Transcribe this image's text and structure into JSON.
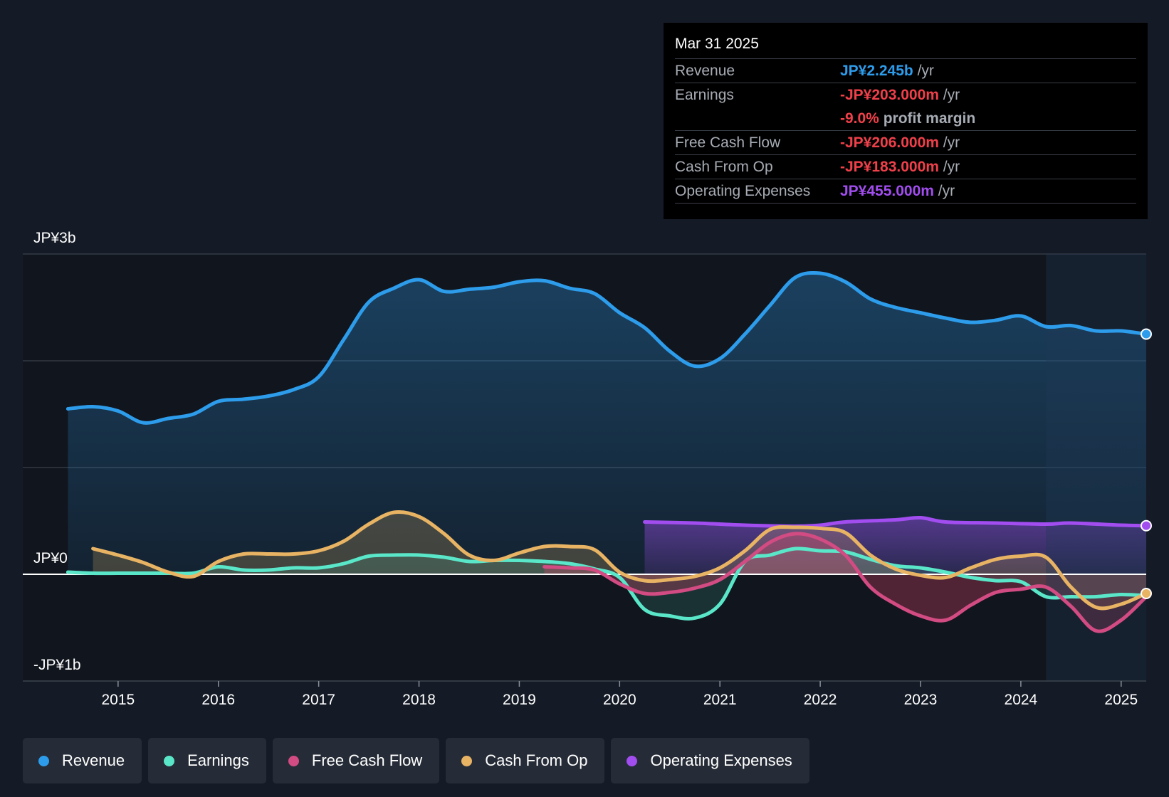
{
  "colors": {
    "revenue": "#2d9ceb",
    "earnings": "#5ae6c8",
    "fcf": "#d24b82",
    "cfo": "#e8b464",
    "opex": "#a24df0",
    "negative": "#f0404a",
    "background": "#151b26"
  },
  "tooltip": {
    "date": "Mar 31 2025",
    "rows": [
      {
        "label": "Revenue",
        "value": "JP¥2.245b",
        "unit": "/yr"
      },
      {
        "label": "Earnings",
        "value": "-JP¥203.000m",
        "unit": "/yr"
      },
      {
        "label": "",
        "value": "-9.0%",
        "unit": "profit margin"
      },
      {
        "label": "Free Cash Flow",
        "value": "-JP¥206.000m",
        "unit": "/yr"
      },
      {
        "label": "Cash From Op",
        "value": "-JP¥183.000m",
        "unit": "/yr"
      },
      {
        "label": "Operating Expenses",
        "value": "JP¥455.000m",
        "unit": "/yr"
      }
    ]
  },
  "chart_data": {
    "type": "area",
    "y_unit": "JP¥ billions",
    "ylim": [
      -1.0,
      3.0
    ],
    "y_tick_labels": [
      {
        "value": 3,
        "label": "JP¥3b"
      },
      {
        "value": 0,
        "label": "JP¥0"
      },
      {
        "value": -1,
        "label": "-JP¥1b"
      }
    ],
    "xlim": [
      2014.05,
      2025.25
    ],
    "x_ticks": [
      {
        "value": 2015,
        "label": "2015"
      },
      {
        "value": 2016,
        "label": "2016"
      },
      {
        "value": 2017,
        "label": "2017"
      },
      {
        "value": 2018,
        "label": "2018"
      },
      {
        "value": 2019,
        "label": "2019"
      },
      {
        "value": 2020,
        "label": "2020"
      },
      {
        "value": 2021,
        "label": "2021"
      },
      {
        "value": 2022,
        "label": "2022"
      },
      {
        "value": 2023,
        "label": "2023"
      },
      {
        "value": 2024,
        "label": "2024"
      },
      {
        "value": 2025,
        "label": "2025"
      }
    ],
    "forecast_start": 2024.25,
    "series": [
      {
        "name": "Revenue",
        "key": "revenue",
        "marker": true,
        "points": [
          [
            2014.5,
            1.55
          ],
          [
            2014.75,
            1.57
          ],
          [
            2015.0,
            1.53
          ],
          [
            2015.25,
            1.42
          ],
          [
            2015.5,
            1.46
          ],
          [
            2015.75,
            1.5
          ],
          [
            2016.0,
            1.62
          ],
          [
            2016.25,
            1.64
          ],
          [
            2016.5,
            1.67
          ],
          [
            2016.75,
            1.73
          ],
          [
            2017.0,
            1.85
          ],
          [
            2017.25,
            2.2
          ],
          [
            2017.5,
            2.55
          ],
          [
            2017.75,
            2.68
          ],
          [
            2018.0,
            2.76
          ],
          [
            2018.25,
            2.65
          ],
          [
            2018.5,
            2.67
          ],
          [
            2018.75,
            2.69
          ],
          [
            2019.0,
            2.74
          ],
          [
            2019.25,
            2.75
          ],
          [
            2019.5,
            2.68
          ],
          [
            2019.75,
            2.63
          ],
          [
            2020.0,
            2.45
          ],
          [
            2020.25,
            2.31
          ],
          [
            2020.5,
            2.09
          ],
          [
            2020.75,
            1.95
          ],
          [
            2021.0,
            2.02
          ],
          [
            2021.25,
            2.25
          ],
          [
            2021.5,
            2.52
          ],
          [
            2021.75,
            2.78
          ],
          [
            2022.0,
            2.82
          ],
          [
            2022.25,
            2.74
          ],
          [
            2022.5,
            2.58
          ],
          [
            2022.75,
            2.5
          ],
          [
            2023.0,
            2.45
          ],
          [
            2023.25,
            2.4
          ],
          [
            2023.5,
            2.36
          ],
          [
            2023.75,
            2.38
          ],
          [
            2024.0,
            2.42
          ],
          [
            2024.25,
            2.32
          ],
          [
            2024.5,
            2.33
          ],
          [
            2024.75,
            2.28
          ],
          [
            2025.0,
            2.28
          ],
          [
            2025.25,
            2.25
          ]
        ]
      },
      {
        "name": "Earnings",
        "key": "earnings",
        "marker": false,
        "points": [
          [
            2014.5,
            0.02
          ],
          [
            2014.75,
            0.01
          ],
          [
            2015.0,
            0.01
          ],
          [
            2015.25,
            0.01
          ],
          [
            2015.5,
            0.01
          ],
          [
            2015.75,
            0.01
          ],
          [
            2016.0,
            0.07
          ],
          [
            2016.25,
            0.04
          ],
          [
            2016.5,
            0.04
          ],
          [
            2016.75,
            0.06
          ],
          [
            2017.0,
            0.06
          ],
          [
            2017.25,
            0.1
          ],
          [
            2017.5,
            0.17
          ],
          [
            2017.75,
            0.18
          ],
          [
            2018.0,
            0.18
          ],
          [
            2018.25,
            0.16
          ],
          [
            2018.5,
            0.12
          ],
          [
            2018.75,
            0.13
          ],
          [
            2019.0,
            0.13
          ],
          [
            2019.25,
            0.12
          ],
          [
            2019.5,
            0.1
          ],
          [
            2019.75,
            0.05
          ],
          [
            2020.0,
            -0.03
          ],
          [
            2020.25,
            -0.33
          ],
          [
            2020.5,
            -0.39
          ],
          [
            2020.75,
            -0.41
          ],
          [
            2021.0,
            -0.28
          ],
          [
            2021.25,
            0.12
          ],
          [
            2021.5,
            0.18
          ],
          [
            2021.75,
            0.24
          ],
          [
            2022.0,
            0.22
          ],
          [
            2022.25,
            0.21
          ],
          [
            2022.5,
            0.14
          ],
          [
            2022.75,
            0.08
          ],
          [
            2023.0,
            0.06
          ],
          [
            2023.25,
            0.02
          ],
          [
            2023.5,
            -0.03
          ],
          [
            2023.75,
            -0.06
          ],
          [
            2024.0,
            -0.07
          ],
          [
            2024.25,
            -0.21
          ],
          [
            2024.5,
            -0.21
          ],
          [
            2024.75,
            -0.21
          ],
          [
            2025.0,
            -0.19
          ],
          [
            2025.25,
            -0.2
          ]
        ]
      },
      {
        "name": "Free Cash Flow",
        "key": "fcf",
        "marker": false,
        "points": [
          [
            2019.25,
            0.07
          ],
          [
            2019.5,
            0.06
          ],
          [
            2019.75,
            0.04
          ],
          [
            2020.0,
            -0.09
          ],
          [
            2020.25,
            -0.18
          ],
          [
            2020.5,
            -0.17
          ],
          [
            2020.75,
            -0.13
          ],
          [
            2021.0,
            -0.05
          ],
          [
            2021.25,
            0.12
          ],
          [
            2021.5,
            0.3
          ],
          [
            2021.75,
            0.38
          ],
          [
            2022.0,
            0.33
          ],
          [
            2022.25,
            0.18
          ],
          [
            2022.5,
            -0.12
          ],
          [
            2022.75,
            -0.28
          ],
          [
            2023.0,
            -0.39
          ],
          [
            2023.25,
            -0.43
          ],
          [
            2023.5,
            -0.29
          ],
          [
            2023.75,
            -0.17
          ],
          [
            2024.0,
            -0.14
          ],
          [
            2024.25,
            -0.12
          ],
          [
            2024.5,
            -0.3
          ],
          [
            2024.75,
            -0.53
          ],
          [
            2025.0,
            -0.43
          ],
          [
            2025.25,
            -0.21
          ]
        ]
      },
      {
        "name": "Cash From Op",
        "key": "cfo",
        "marker": true,
        "points": [
          [
            2014.75,
            0.24
          ],
          [
            2015.0,
            0.18
          ],
          [
            2015.25,
            0.11
          ],
          [
            2015.5,
            0.02
          ],
          [
            2015.75,
            -0.02
          ],
          [
            2016.0,
            0.12
          ],
          [
            2016.25,
            0.19
          ],
          [
            2016.5,
            0.19
          ],
          [
            2016.75,
            0.19
          ],
          [
            2017.0,
            0.22
          ],
          [
            2017.25,
            0.31
          ],
          [
            2017.5,
            0.47
          ],
          [
            2017.75,
            0.58
          ],
          [
            2018.0,
            0.54
          ],
          [
            2018.25,
            0.38
          ],
          [
            2018.5,
            0.18
          ],
          [
            2018.75,
            0.13
          ],
          [
            2019.0,
            0.2
          ],
          [
            2019.25,
            0.26
          ],
          [
            2019.5,
            0.26
          ],
          [
            2019.75,
            0.23
          ],
          [
            2020.0,
            0.02
          ],
          [
            2020.25,
            -0.06
          ],
          [
            2020.5,
            -0.05
          ],
          [
            2020.75,
            -0.02
          ],
          [
            2021.0,
            0.06
          ],
          [
            2021.25,
            0.22
          ],
          [
            2021.5,
            0.42
          ],
          [
            2021.75,
            0.44
          ],
          [
            2022.0,
            0.43
          ],
          [
            2022.25,
            0.39
          ],
          [
            2022.5,
            0.18
          ],
          [
            2022.75,
            0.05
          ],
          [
            2023.0,
            -0.01
          ],
          [
            2023.25,
            -0.03
          ],
          [
            2023.5,
            0.06
          ],
          [
            2023.75,
            0.14
          ],
          [
            2024.0,
            0.17
          ],
          [
            2024.25,
            0.16
          ],
          [
            2024.5,
            -0.12
          ],
          [
            2024.75,
            -0.31
          ],
          [
            2025.0,
            -0.28
          ],
          [
            2025.25,
            -0.18
          ]
        ]
      },
      {
        "name": "Operating Expenses",
        "key": "opex",
        "marker": true,
        "points": [
          [
            2020.25,
            0.49
          ],
          [
            2020.75,
            0.48
          ],
          [
            2021.25,
            0.46
          ],
          [
            2021.75,
            0.45
          ],
          [
            2022.0,
            0.46
          ],
          [
            2022.25,
            0.49
          ],
          [
            2022.75,
            0.51
          ],
          [
            2023.0,
            0.53
          ],
          [
            2023.25,
            0.49
          ],
          [
            2023.75,
            0.48
          ],
          [
            2024.25,
            0.47
          ],
          [
            2024.5,
            0.48
          ],
          [
            2025.0,
            0.46
          ],
          [
            2025.25,
            0.455
          ]
        ]
      }
    ]
  },
  "legend": [
    {
      "label": "Revenue",
      "key": "revenue"
    },
    {
      "label": "Earnings",
      "key": "earnings"
    },
    {
      "label": "Free Cash Flow",
      "key": "fcf"
    },
    {
      "label": "Cash From Op",
      "key": "cfo"
    },
    {
      "label": "Operating Expenses",
      "key": "opex"
    }
  ]
}
